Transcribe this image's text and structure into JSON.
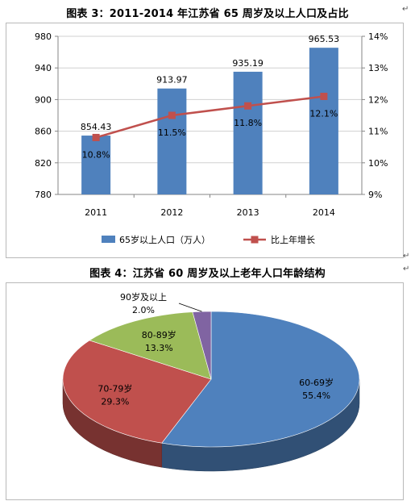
{
  "chart_data": [
    {
      "type": "bar",
      "title": "图表 3：2011-2014 年江苏省 65 周岁及以上人口及占比",
      "categories": [
        "2011",
        "2012",
        "2013",
        "2014"
      ],
      "series": [
        {
          "name": "65岁以上人口（万人）",
          "type": "bar",
          "axis": "left",
          "values": [
            854.43,
            913.97,
            935.19,
            965.53
          ],
          "color": "#4f81bd"
        },
        {
          "name": "比上年增长",
          "type": "line",
          "axis": "right",
          "values": [
            10.8,
            11.5,
            11.8,
            12.1
          ],
          "labels": [
            "10.8%",
            "11.5%",
            "11.8%",
            "12.1%"
          ],
          "color": "#c0504d"
        }
      ],
      "ylim_left": [
        780,
        980
      ],
      "yticks_left": [
        "780",
        "820",
        "860",
        "900",
        "940",
        "980"
      ],
      "ylim_right": [
        9,
        14
      ],
      "yticks_right": [
        "9%",
        "10%",
        "11%",
        "12%",
        "13%",
        "14%"
      ],
      "grid": true,
      "legend": "bottom"
    },
    {
      "type": "pie",
      "title": "图表 4：江苏省 60 周岁及以上老年人口年龄结构",
      "slices": [
        {
          "label": "60-69岁",
          "value": 55.4,
          "text": "55.4%",
          "color": "#4f81bd"
        },
        {
          "label": "70-79岁",
          "value": 29.3,
          "text": "29.3%",
          "color": "#c0504d"
        },
        {
          "label": "80-89岁",
          "value": 13.3,
          "text": "13.3%",
          "color": "#9bbb59"
        },
        {
          "label": "90岁及以上",
          "value": 2.0,
          "text": "2.0%",
          "color": "#8064a2"
        }
      ],
      "legend": "none"
    }
  ]
}
